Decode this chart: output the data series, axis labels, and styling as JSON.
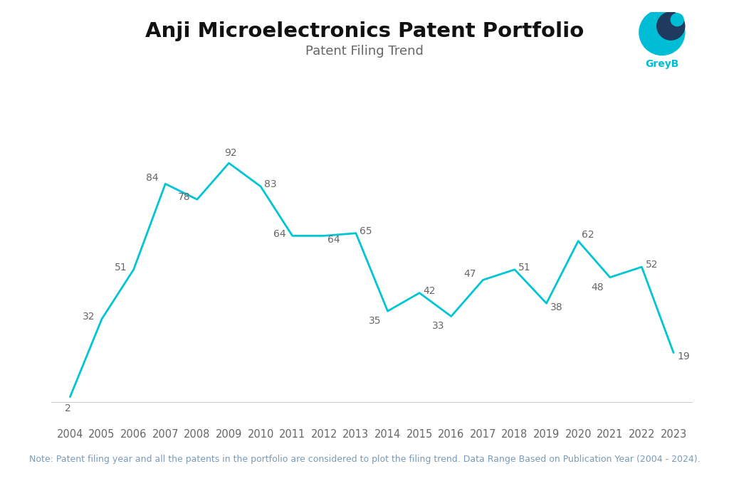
{
  "title": "Anji Microelectronics Patent Portfolio",
  "subtitle": "Patent Filing Trend",
  "years": [
    2004,
    2005,
    2006,
    2007,
    2008,
    2009,
    2010,
    2011,
    2012,
    2013,
    2014,
    2015,
    2016,
    2017,
    2018,
    2019,
    2020,
    2021,
    2022,
    2023
  ],
  "values": [
    2,
    32,
    51,
    84,
    78,
    92,
    83,
    64,
    64,
    65,
    35,
    42,
    33,
    47,
    51,
    38,
    62,
    48,
    52,
    19
  ],
  "line_color": "#00C5D4",
  "background_color": "#ffffff",
  "title_fontsize": 21,
  "subtitle_fontsize": 13,
  "annotation_fontsize": 10,
  "note_text": "Note: Patent filing year and all the patents in the portfolio are considered to plot the filing trend. Data Range Based on Publication Year (2004 - 2024).",
  "note_fontsize": 9,
  "xlabel_fontsize": 10.5,
  "tick_color": "#666666",
  "title_color": "#111111",
  "subtitle_color": "#666666",
  "annotation_color": "#666666",
  "logo_teal": "#00BDD6",
  "logo_dark": "#1e3a5f",
  "logo_text_color": "#00BDD6"
}
